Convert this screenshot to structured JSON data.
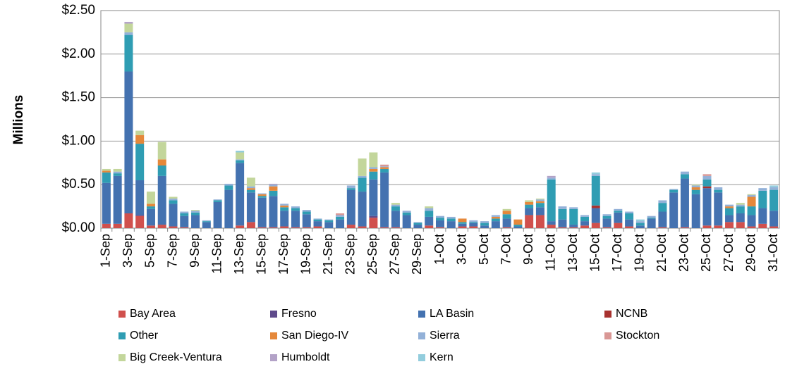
{
  "chart_data": {
    "type": "stacked_bar",
    "y_label": "Millions",
    "categories": [
      "1-Sep",
      null,
      "3-Sep",
      null,
      "5-Sep",
      null,
      "7-Sep",
      null,
      "9-Sep",
      null,
      "11-Sep",
      null,
      "13-Sep",
      null,
      "15-Sep",
      null,
      "17-Sep",
      null,
      "19-Sep",
      null,
      "21-Sep",
      null,
      "23-Sep",
      null,
      "25-Sep",
      null,
      "27-Sep",
      null,
      "29-Sep",
      null,
      "1-Oct",
      null,
      "3-Oct",
      null,
      "5-Oct",
      null,
      "7-Oct",
      null,
      "9-Oct",
      null,
      "11-Oct",
      null,
      "13-Oct",
      null,
      "15-Oct",
      null,
      "17-Oct",
      null,
      "19-Oct",
      null,
      "21-Oct",
      null,
      "23-Oct",
      null,
      "25-Oct",
      null,
      "27-Oct",
      null,
      "29-Oct",
      null,
      "31-Oct"
    ],
    "ylim": [
      0,
      2.5
    ],
    "yticks": [
      {
        "value": 0,
        "label": "$0.00"
      },
      {
        "value": 0.5,
        "label": "$0.50"
      },
      {
        "value": 1,
        "label": "$1.00"
      },
      {
        "value": 1.5,
        "label": "$1.50"
      },
      {
        "value": 2,
        "label": "$2.00"
      },
      {
        "value": 2.5,
        "label": "$2.50"
      }
    ],
    "grid": true,
    "series": [
      {
        "name": "Bay Area",
        "color": "#d0504d",
        "values": [
          0.05,
          0.05,
          0.17,
          0.14,
          0.03,
          0.04,
          0.02,
          0.01,
          0,
          0,
          0,
          0,
          0.03,
          0.07,
          0.01,
          0.01,
          0.02,
          0.01,
          0.01,
          0.02,
          0,
          0,
          0.04,
          0.02,
          0.12,
          0.01,
          0.01,
          0,
          0,
          0.03,
          0.01,
          0,
          0.02,
          0.02,
          0,
          0,
          0.01,
          0,
          0.15,
          0.15,
          0.04,
          0.01,
          0.01,
          0.03,
          0.06,
          0.01,
          0.06,
          0.02,
          0,
          0,
          0.01,
          0,
          0.01,
          0,
          0.03,
          0.03,
          0.07,
          0.07,
          0.02,
          0.05,
          0.02
        ]
      },
      {
        "name": "Fresno",
        "color": "#5f4a8b",
        "values": [
          0,
          0,
          0,
          0.01,
          0,
          0,
          0,
          0,
          0,
          0,
          0,
          0,
          0,
          0,
          0,
          0,
          0,
          0,
          0,
          0,
          0,
          0,
          0,
          0,
          0.02,
          0,
          0,
          0,
          0,
          0,
          0,
          0,
          0,
          0,
          0,
          0,
          0,
          0,
          0,
          0,
          0,
          0,
          0,
          0,
          0,
          0,
          0,
          0,
          0,
          0,
          0,
          0,
          0,
          0,
          0,
          0,
          0,
          0,
          0,
          0,
          0
        ]
      },
      {
        "name": "LA Basin",
        "color": "#4472b0",
        "values": [
          0.47,
          0.55,
          1.63,
          0.4,
          0.19,
          0.56,
          0.26,
          0.13,
          0.15,
          0.07,
          0.3,
          0.44,
          0.72,
          0.34,
          0.34,
          0.36,
          0.18,
          0.19,
          0.15,
          0.06,
          0.07,
          0.1,
          0.4,
          0.4,
          0.42,
          0.63,
          0.19,
          0.15,
          0.04,
          0.1,
          0.08,
          0.08,
          0.03,
          0.04,
          0.03,
          0.08,
          0.1,
          0.02,
          0.08,
          0.09,
          0.04,
          0.09,
          0.03,
          0.05,
          0.17,
          0.1,
          0.12,
          0.08,
          0.03,
          0.11,
          0.18,
          0.41,
          0.56,
          0.39,
          0.43,
          0.38,
          0.08,
          0.1,
          0.13,
          0.18,
          0.18
        ]
      },
      {
        "name": "NCNB",
        "color": "#a8322f",
        "values": [
          0,
          0,
          0,
          0,
          0,
          0,
          0,
          0,
          0,
          0,
          0,
          0,
          0,
          0,
          0,
          0,
          0,
          0,
          0,
          0,
          0,
          0,
          0,
          0,
          0,
          0,
          0,
          0,
          0,
          0,
          0,
          0,
          0,
          0,
          0,
          0,
          0,
          0,
          0,
          0,
          0,
          0,
          0,
          0,
          0.03,
          0,
          0,
          0,
          0,
          0,
          0,
          0,
          0,
          0,
          0.02,
          0,
          0,
          0,
          0,
          0,
          0
        ]
      },
      {
        "name": "Other",
        "color": "#2f9db3",
        "values": [
          0.12,
          0.03,
          0.42,
          0.42,
          0.03,
          0.12,
          0.04,
          0.03,
          0.03,
          0.01,
          0.02,
          0.05,
          0.03,
          0.03,
          0.02,
          0.06,
          0.04,
          0.03,
          0.03,
          0.02,
          0.02,
          0.03,
          0.02,
          0.16,
          0.09,
          0.04,
          0.05,
          0.03,
          0.02,
          0.07,
          0.03,
          0.03,
          0.02,
          0.01,
          0.03,
          0.03,
          0.05,
          0.02,
          0.04,
          0.05,
          0.48,
          0.12,
          0.18,
          0.05,
          0.34,
          0.03,
          0.02,
          0.07,
          0.03,
          0.01,
          0.1,
          0.03,
          0.05,
          0.05,
          0.08,
          0.03,
          0.08,
          0.08,
          0.1,
          0.2,
          0.24
        ]
      },
      {
        "name": "San Diego-IV",
        "color": "#e5883a",
        "values": [
          0.02,
          0,
          0,
          0.1,
          0.03,
          0.07,
          0,
          0,
          0,
          0,
          0,
          0,
          0,
          0.02,
          0.02,
          0.05,
          0.02,
          0,
          0,
          0,
          0,
          0,
          0,
          0,
          0.03,
          0.02,
          0,
          0,
          0,
          0,
          0,
          0,
          0.04,
          0,
          0,
          0.02,
          0.04,
          0.06,
          0.03,
          0.02,
          0,
          0,
          0,
          0,
          0,
          0,
          0,
          0,
          0,
          0,
          0,
          0,
          0,
          0.03,
          0,
          0,
          0.02,
          0,
          0.11,
          0,
          0
        ]
      },
      {
        "name": "Sierra",
        "color": "#93b1d8",
        "values": [
          0,
          0.02,
          0.03,
          0,
          0,
          0,
          0.02,
          0.02,
          0.02,
          0.01,
          0.01,
          0.02,
          0.01,
          0.02,
          0.01,
          0.02,
          0.02,
          0.02,
          0.02,
          0.01,
          0.01,
          0.02,
          0.03,
          0.02,
          0.02,
          0.01,
          0.02,
          0.02,
          0.01,
          0.03,
          0.02,
          0.02,
          0,
          0.02,
          0.02,
          0.02,
          0,
          0,
          0,
          0.02,
          0.02,
          0.03,
          0.02,
          0.02,
          0.02,
          0.02,
          0.02,
          0.02,
          0.02,
          0.02,
          0.03,
          0.01,
          0.03,
          0.02,
          0.04,
          0.03,
          0.02,
          0.02,
          0.02,
          0.03,
          0.03
        ]
      },
      {
        "name": "Stockton",
        "color": "#d99795",
        "values": [
          0,
          0,
          0,
          0,
          0,
          0,
          0,
          0,
          0,
          0,
          0,
          0,
          0,
          0,
          0,
          0,
          0,
          0,
          0,
          0,
          0,
          0.02,
          0,
          0,
          0,
          0.02,
          0,
          0,
          0,
          0,
          0,
          0,
          0,
          0,
          0,
          0,
          0,
          0,
          0,
          0,
          0,
          0,
          0,
          0,
          0,
          0,
          0,
          0,
          0,
          0,
          0,
          0,
          0,
          0,
          0.02,
          0,
          0,
          0,
          0,
          0,
          0
        ]
      },
      {
        "name": "Big Creek-Ventura",
        "color": "#c3d69b",
        "values": [
          0.02,
          0.03,
          0.1,
          0.05,
          0.14,
          0.2,
          0.02,
          0,
          0.01,
          0,
          0,
          0,
          0.08,
          0.1,
          0,
          0,
          0,
          0,
          0,
          0,
          0,
          0,
          0,
          0.2,
          0.17,
          0,
          0.02,
          0,
          0,
          0.02,
          0,
          0,
          0,
          0,
          0,
          0,
          0.02,
          0,
          0.02,
          0.01,
          0,
          0,
          0,
          0,
          0,
          0,
          0,
          0,
          0,
          0,
          0,
          0,
          0,
          0.01,
          0,
          0,
          0,
          0.02,
          0.01,
          0,
          0
        ]
      },
      {
        "name": "Humboldt",
        "color": "#b3a2c7",
        "values": [
          0,
          0,
          0.02,
          0,
          0,
          0,
          0,
          0,
          0,
          0,
          0,
          0,
          0,
          0,
          0,
          0.01,
          0,
          0,
          0,
          0,
          0,
          0,
          0,
          0,
          0,
          0,
          0,
          0,
          0,
          0,
          0,
          0,
          0,
          0,
          0,
          0,
          0,
          0,
          0,
          0,
          0.02,
          0,
          0,
          0,
          0,
          0,
          0,
          0,
          0,
          0,
          0,
          0,
          0,
          0,
          0,
          0,
          0,
          0,
          0,
          0,
          0
        ]
      },
      {
        "name": "Kern",
        "color": "#93cddd",
        "values": [
          0,
          0,
          0,
          0,
          0,
          0,
          0,
          0,
          0,
          0,
          0,
          0,
          0.02,
          0,
          0,
          0,
          0,
          0,
          0,
          0,
          0,
          0,
          0,
          0,
          0,
          0,
          0,
          0,
          0,
          0,
          0,
          0,
          0,
          0,
          0,
          0,
          0,
          0,
          0,
          0,
          0,
          0,
          0,
          0,
          0.02,
          0,
          0,
          0,
          0.02,
          0,
          0,
          0,
          0,
          0,
          0,
          0,
          0,
          0,
          0,
          0,
          0.02
        ]
      }
    ]
  }
}
